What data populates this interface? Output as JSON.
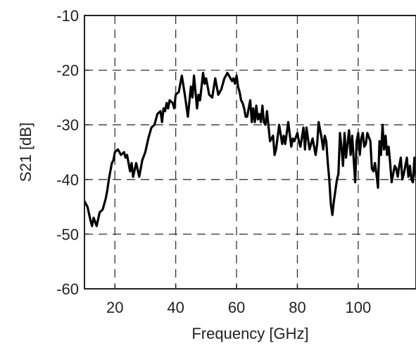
{
  "chart_data": {
    "type": "line",
    "title": "",
    "xlabel": "Frequency [GHz]",
    "ylabel": "S21 [dB]",
    "xlim": [
      10,
      119
    ],
    "ylim": [
      -60,
      -10
    ],
    "xticks": [
      20,
      40,
      60,
      80,
      100
    ],
    "yticks": [
      -10,
      -20,
      -30,
      -40,
      -50,
      -60
    ],
    "xtick_labels": [
      "20",
      "40",
      "60",
      "80",
      "100"
    ],
    "ytick_labels": [
      "-10",
      "-20",
      "-30",
      "-40",
      "-50",
      "-60"
    ],
    "grid": true,
    "grid_style": "dashed",
    "line_color": "#000000",
    "series": [
      {
        "x": [
          10.0,
          11.0,
          12.0,
          12.5,
          13.0,
          14.0,
          15.0,
          16.0,
          17.0,
          17.5,
          18.0,
          19.0,
          19.5,
          20.0,
          21.0,
          22.0,
          23.0,
          23.5,
          24.0,
          25.0,
          25.5,
          26.0,
          27.0,
          28.0,
          29.0,
          30.0,
          31.0,
          32.0,
          33.0,
          34.0,
          35.0,
          35.5,
          36.0,
          36.5,
          37.0,
          37.5,
          38.0,
          39.0,
          39.5,
          40.0,
          41.0,
          42.0,
          43.0,
          44.0,
          45.0,
          45.5,
          46.0,
          47.0,
          47.5,
          48.0,
          49.0,
          49.5,
          50.0,
          51.0,
          52.0,
          53.0,
          54.0,
          55.0,
          56.0,
          57.0,
          57.5,
          58.0,
          58.5,
          59.0,
          59.5,
          60.0,
          60.5,
          61.0,
          61.5,
          62.0,
          62.5,
          63.0,
          63.5,
          64.0,
          64.5,
          65.0,
          65.5,
          66.0,
          66.5,
          67.0,
          67.5,
          68.0,
          68.5,
          69.0,
          69.5,
          70.0,
          71.0,
          72.0,
          72.5,
          73.0,
          74.0,
          75.0,
          75.5,
          76.0,
          77.0,
          78.0,
          78.5,
          79.0,
          80.0,
          80.5,
          81.0,
          82.0,
          82.5,
          83.0,
          84.0,
          85.0,
          86.0,
          86.5,
          87.0,
          88.0,
          88.5,
          89.0,
          89.5,
          90.0,
          90.5,
          91.0,
          91.5,
          92.0,
          93.0,
          93.5,
          94.0,
          94.5,
          95.0,
          95.5,
          96.0,
          97.0,
          97.5,
          98.0,
          99.0,
          99.5,
          100.0,
          100.5,
          101.0,
          101.5,
          102.0,
          102.5,
          103.0,
          104.0,
          104.5,
          105.0,
          105.5,
          106.0,
          106.5,
          107.0,
          107.5,
          108.0,
          108.5,
          109.0,
          109.5,
          110.0,
          110.5,
          111.0,
          112.0,
          112.5,
          113.0,
          113.5,
          114.0,
          114.5,
          115.0,
          116.0,
          116.5,
          117.0,
          117.5,
          118.0,
          118.5,
          119.0
        ],
        "y": [
          -44.0,
          -45.0,
          -47.5,
          -48.5,
          -47.0,
          -48.5,
          -46.0,
          -45.5,
          -43.5,
          -42.0,
          -40.0,
          -37.0,
          -36.5,
          -35.0,
          -34.5,
          -35.5,
          -35.0,
          -36.0,
          -35.5,
          -38.5,
          -37.0,
          -39.5,
          -37.0,
          -39.5,
          -36.5,
          -35.0,
          -32.5,
          -30.5,
          -30.0,
          -28.0,
          -27.5,
          -29.5,
          -27.0,
          -27.5,
          -26.0,
          -27.0,
          -25.5,
          -26.0,
          -27.0,
          -24.5,
          -24.0,
          -21.0,
          -24.5,
          -28.5,
          -23.0,
          -25.0,
          -21.0,
          -27.0,
          -24.5,
          -25.5,
          -20.5,
          -22.5,
          -21.5,
          -24.5,
          -25.0,
          -21.5,
          -24.5,
          -23.5,
          -21.5,
          -20.5,
          -21.0,
          -21.5,
          -22.0,
          -21.5,
          -22.5,
          -21.0,
          -23.0,
          -24.0,
          -25.5,
          -26.0,
          -27.0,
          -28.5,
          -28.5,
          -27.0,
          -25.5,
          -29.5,
          -27.0,
          -29.5,
          -26.5,
          -29.0,
          -28.0,
          -29.5,
          -26.5,
          -29.5,
          -30.0,
          -27.5,
          -33.0,
          -32.0,
          -35.5,
          -34.5,
          -30.0,
          -33.5,
          -32.0,
          -33.5,
          -29.5,
          -34.0,
          -32.5,
          -33.0,
          -31.5,
          -33.0,
          -34.0,
          -30.5,
          -34.5,
          -30.5,
          -34.5,
          -32.5,
          -35.5,
          -33.5,
          -29.5,
          -32.5,
          -34.5,
          -32.0,
          -33.0,
          -37.0,
          -40.0,
          -44.5,
          -46.5,
          -44.0,
          -40.0,
          -39.0,
          -31.5,
          -34.0,
          -37.5,
          -31.5,
          -36.0,
          -31.0,
          -35.5,
          -32.0,
          -40.5,
          -33.0,
          -31.5,
          -35.5,
          -32.5,
          -31.5,
          -34.0,
          -33.5,
          -31.5,
          -33.0,
          -38.0,
          -38.5,
          -37.0,
          -39.0,
          -41.5,
          -33.0,
          -35.5,
          -30.0,
          -34.5,
          -32.0,
          -35.5,
          -34.0,
          -37.0,
          -40.5,
          -37.5,
          -38.0,
          -39.5,
          -37.5,
          -36.0,
          -40.0,
          -39.0,
          -36.0,
          -39.5,
          -37.5,
          -40.0,
          -40.5,
          -36.0,
          -39.5
        ]
      }
    ]
  }
}
